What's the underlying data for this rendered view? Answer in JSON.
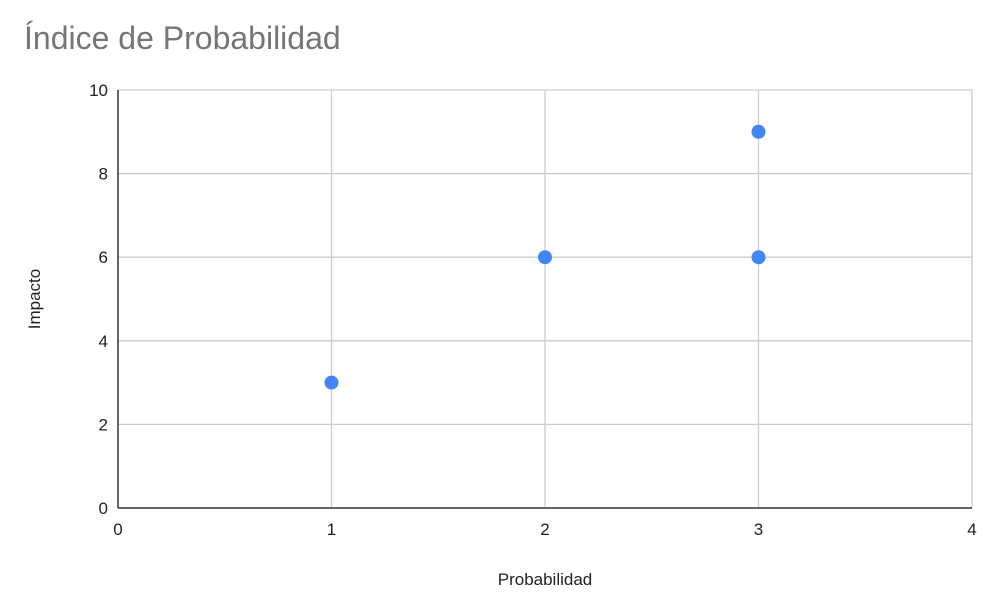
{
  "chart_data": {
    "type": "scatter",
    "title": "Índice de Probabilidad",
    "xlabel": "Probabilidad",
    "ylabel": "Impacto",
    "xlim": [
      0,
      4
    ],
    "ylim": [
      0,
      10
    ],
    "xticks": [
      "0",
      "1",
      "2",
      "3",
      "4"
    ],
    "yticks": [
      "0",
      "2",
      "4",
      "6",
      "8",
      "10"
    ],
    "grid": true,
    "legend": "none",
    "series": [
      {
        "color": "#4285F4",
        "points": [
          {
            "x": 1,
            "y": 3
          },
          {
            "x": 2,
            "y": 6
          },
          {
            "x": 3,
            "y": 9
          },
          {
            "x": 3,
            "y": 6
          }
        ]
      }
    ]
  }
}
